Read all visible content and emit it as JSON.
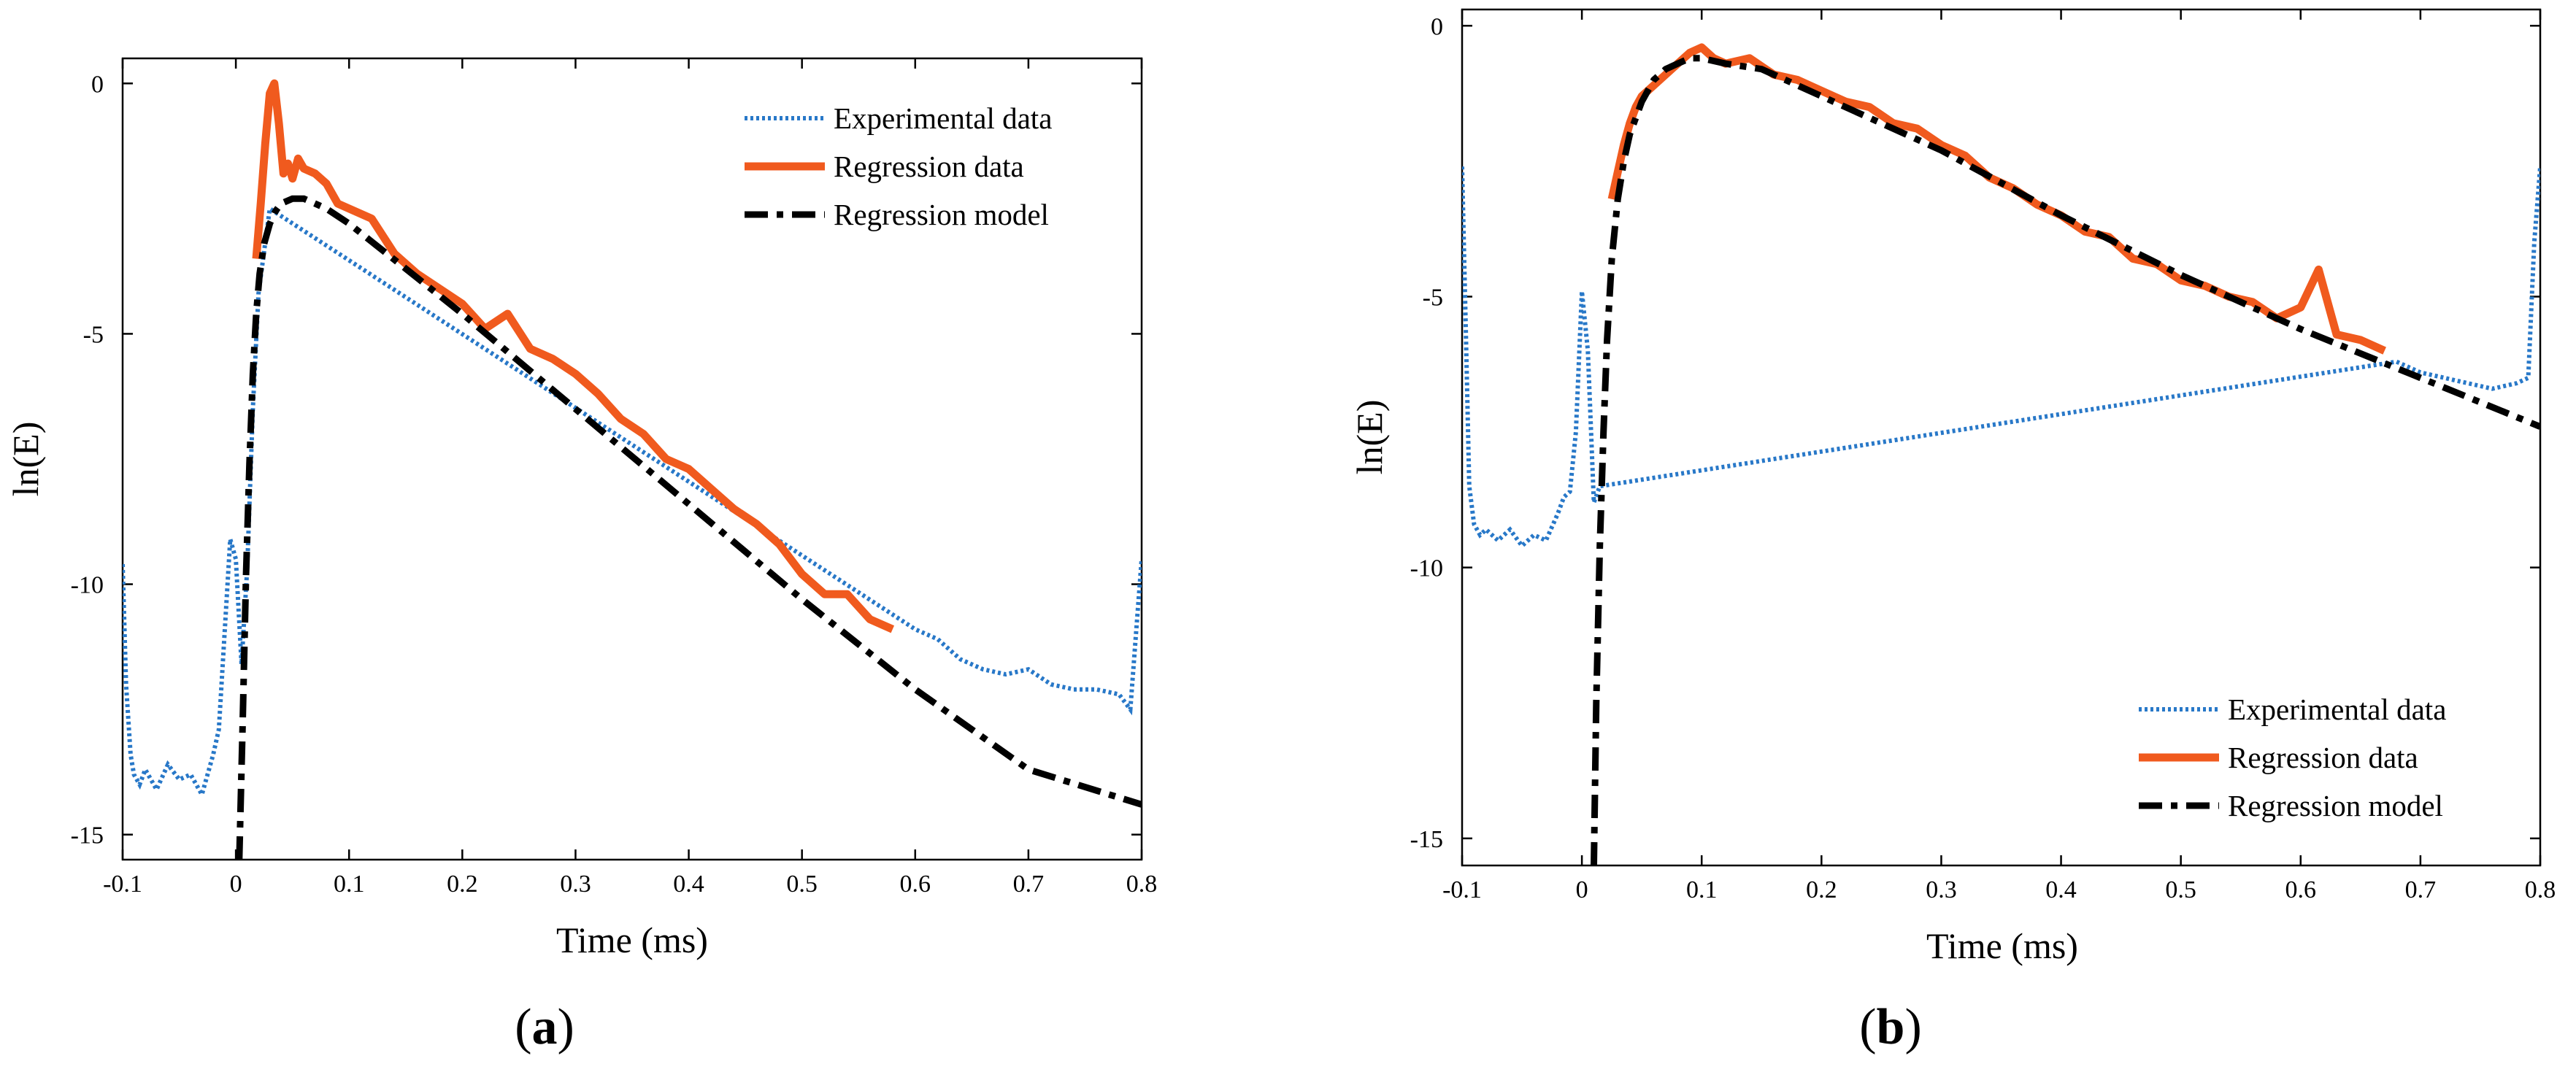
{
  "chart_data": [
    {
      "type": "line",
      "panel_label": "a",
      "xlabel": "Time (ms)",
      "ylabel": "ln(E)",
      "xlim": [
        -0.1,
        0.8
      ],
      "ylim": [
        -15.5,
        0.5
      ],
      "x_ticks": [
        -0.1,
        0,
        0.1,
        0.2,
        0.3,
        0.4,
        0.5,
        0.6,
        0.7,
        0.8
      ],
      "x_tick_labels": [
        "-0.1",
        "0",
        "0.1",
        "0.2",
        "0.3",
        "0.4",
        "0.5",
        "0.6",
        "0.7",
        "0.8"
      ],
      "y_ticks": [
        0,
        -5,
        -10,
        -15
      ],
      "y_tick_labels": [
        "0",
        "-5",
        "-10",
        "-15"
      ],
      "legend_position": "top-right",
      "series": [
        {
          "name": "Experimental data",
          "style": "dotted",
          "color": "#2878c8",
          "x": [
            -0.1,
            -0.097,
            -0.093,
            -0.09,
            -0.085,
            -0.08,
            -0.07,
            -0.06,
            -0.05,
            -0.04,
            -0.03,
            -0.02,
            -0.015,
            -0.01,
            -0.005,
            0.0,
            0.005,
            0.01,
            0.015,
            0.02,
            0.03,
            0.6,
            0.62,
            0.64,
            0.66,
            0.68,
            0.7,
            0.72,
            0.74,
            0.76,
            0.78,
            0.79,
            0.795,
            0.8
          ],
          "y": [
            -9.6,
            -12.0,
            -13.4,
            -13.8,
            -14.0,
            -13.7,
            -14.1,
            -13.6,
            -13.9,
            -13.8,
            -14.2,
            -13.4,
            -12.9,
            -11.0,
            -9.1,
            -9.5,
            -11.6,
            -9.7,
            -6.5,
            -4.2,
            -2.5,
            -10.9,
            -11.1,
            -11.5,
            -11.7,
            -11.8,
            -11.7,
            -12.0,
            -12.1,
            -12.1,
            -12.2,
            -12.5,
            -11.0,
            -9.5
          ]
        },
        {
          "name": "Regression data",
          "style": "solid",
          "color": "#f05a1e",
          "x": [
            0.018,
            0.022,
            0.026,
            0.03,
            0.034,
            0.038,
            0.042,
            0.046,
            0.05,
            0.055,
            0.06,
            0.07,
            0.08,
            0.09,
            0.1,
            0.12,
            0.14,
            0.16,
            0.18,
            0.2,
            0.22,
            0.24,
            0.26,
            0.28,
            0.3,
            0.32,
            0.34,
            0.36,
            0.38,
            0.4,
            0.42,
            0.44,
            0.46,
            0.48,
            0.5,
            0.52,
            0.54,
            0.56,
            0.58
          ],
          "y": [
            -3.5,
            -2.4,
            -1.2,
            -0.2,
            0.0,
            -0.8,
            -1.8,
            -1.6,
            -1.9,
            -1.5,
            -1.7,
            -1.8,
            -2.0,
            -2.4,
            -2.5,
            -2.7,
            -3.4,
            -3.8,
            -4.1,
            -4.4,
            -4.9,
            -4.6,
            -5.3,
            -5.5,
            -5.8,
            -6.2,
            -6.7,
            -7.0,
            -7.5,
            -7.7,
            -8.1,
            -8.5,
            -8.8,
            -9.2,
            -9.8,
            -10.2,
            -10.2,
            -10.7,
            -10.9
          ]
        },
        {
          "name": "Regression model",
          "style": "dashdot",
          "color": "#000000",
          "x": [
            0.003,
            0.006,
            0.009,
            0.012,
            0.015,
            0.018,
            0.021,
            0.025,
            0.03,
            0.035,
            0.04,
            0.05,
            0.06,
            0.07,
            0.08,
            0.1,
            0.15,
            0.2,
            0.3,
            0.4,
            0.5,
            0.6,
            0.7,
            0.8
          ],
          "y": [
            -15.5,
            -12.8,
            -9.8,
            -7.6,
            -5.8,
            -4.6,
            -3.8,
            -3.2,
            -2.8,
            -2.55,
            -2.4,
            -2.3,
            -2.3,
            -2.4,
            -2.5,
            -2.8,
            -3.7,
            -4.6,
            -6.5,
            -8.4,
            -10.3,
            -12.1,
            -13.7,
            -14.4
          ]
        }
      ]
    },
    {
      "type": "line",
      "panel_label": "b",
      "xlabel": "Time (ms)",
      "ylabel": "ln(E)",
      "xlim": [
        -0.1,
        0.8
      ],
      "ylim": [
        -15.5,
        0.3
      ],
      "x_ticks": [
        -0.1,
        0,
        0.1,
        0.2,
        0.3,
        0.4,
        0.5,
        0.6,
        0.7,
        0.8
      ],
      "x_tick_labels": [
        "-0.1",
        "0",
        "0.1",
        "0.2",
        "0.3",
        "0.4",
        "0.5",
        "0.6",
        "0.7",
        "0.8"
      ],
      "y_ticks": [
        0,
        -5,
        -10,
        -15
      ],
      "y_tick_labels": [
        "0",
        "-5",
        "-10",
        "-15"
      ],
      "legend_position": "bottom-right",
      "series": [
        {
          "name": "Experimental data",
          "style": "dotted",
          "color": "#2878c8",
          "x": [
            -0.1,
            -0.097,
            -0.094,
            -0.09,
            -0.085,
            -0.08,
            -0.07,
            -0.06,
            -0.05,
            -0.04,
            -0.03,
            -0.02,
            -0.015,
            -0.01,
            -0.005,
            0.0,
            0.005,
            0.01,
            0.015,
            0.68,
            0.7,
            0.72,
            0.74,
            0.76,
            0.78,
            0.79,
            0.795,
            0.8
          ],
          "y": [
            -2.6,
            -5.5,
            -8.5,
            -9.2,
            -9.4,
            -9.3,
            -9.5,
            -9.3,
            -9.6,
            -9.4,
            -9.5,
            -9.0,
            -8.7,
            -8.6,
            -7.5,
            -4.9,
            -6.0,
            -8.8,
            -8.5,
            -6.2,
            -6.4,
            -6.5,
            -6.6,
            -6.7,
            -6.6,
            -6.5,
            -4.0,
            -2.6
          ]
        },
        {
          "name": "Regression data",
          "style": "solid",
          "color": "#f05a1e",
          "x": [
            0.025,
            0.03,
            0.035,
            0.04,
            0.045,
            0.05,
            0.06,
            0.07,
            0.08,
            0.09,
            0.1,
            0.11,
            0.12,
            0.14,
            0.16,
            0.18,
            0.2,
            0.22,
            0.24,
            0.26,
            0.28,
            0.3,
            0.32,
            0.34,
            0.36,
            0.38,
            0.4,
            0.42,
            0.44,
            0.46,
            0.48,
            0.5,
            0.52,
            0.54,
            0.56,
            0.58,
            0.6,
            0.615,
            0.63,
            0.65,
            0.67
          ],
          "y": [
            -3.2,
            -2.7,
            -2.2,
            -1.8,
            -1.5,
            -1.3,
            -1.1,
            -0.9,
            -0.7,
            -0.5,
            -0.4,
            -0.6,
            -0.7,
            -0.6,
            -0.9,
            -1.0,
            -1.2,
            -1.4,
            -1.5,
            -1.8,
            -1.9,
            -2.2,
            -2.4,
            -2.8,
            -3.0,
            -3.3,
            -3.5,
            -3.8,
            -3.9,
            -4.3,
            -4.4,
            -4.7,
            -4.8,
            -5.0,
            -5.1,
            -5.4,
            -5.2,
            -4.5,
            -5.7,
            -5.8,
            -6.0
          ]
        },
        {
          "name": "Regression model",
          "style": "dashdot",
          "color": "#000000",
          "x": [
            0.01,
            0.012,
            0.015,
            0.018,
            0.021,
            0.025,
            0.03,
            0.035,
            0.04,
            0.05,
            0.06,
            0.07,
            0.08,
            0.09,
            0.1,
            0.12,
            0.15,
            0.2,
            0.3,
            0.4,
            0.5,
            0.6,
            0.7,
            0.8
          ],
          "y": [
            -15.5,
            -12.5,
            -9.6,
            -7.5,
            -5.8,
            -4.3,
            -3.2,
            -2.5,
            -2.0,
            -1.4,
            -1.0,
            -0.8,
            -0.7,
            -0.6,
            -0.6,
            -0.7,
            -0.8,
            -1.3,
            -2.3,
            -3.5,
            -4.6,
            -5.6,
            -6.5,
            -7.4
          ]
        }
      ]
    }
  ]
}
